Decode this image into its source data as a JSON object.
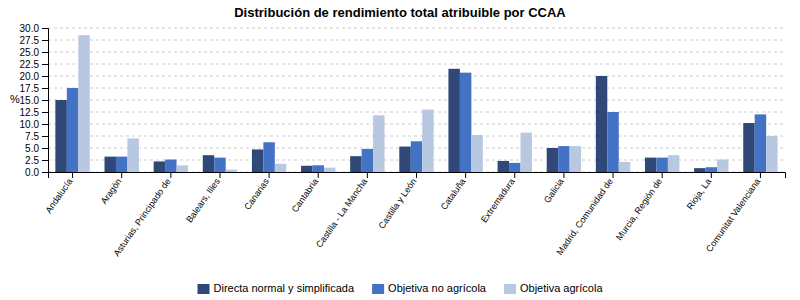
{
  "chart_data": {
    "type": "bar",
    "title": "Distribución de rendimiento total atribuible por CCAA",
    "ylabel": "%",
    "categories": [
      "Andalucía",
      "Aragón",
      "Asturias, Principado de",
      "Balears, Illes",
      "Canarias",
      "Cantabria",
      "Castilla - La Mancha",
      "Castilla y León",
      "Cataluña",
      "Extremadura",
      "Galicia",
      "Madrid, Comunidad de",
      "Murcia, Región de",
      "Rioja, La",
      "Comunitat Valenciana"
    ],
    "series": [
      {
        "name": "Directa normal y simplificada",
        "color": "#2F4878",
        "values": [
          15.0,
          3.2,
          2.2,
          3.5,
          4.7,
          1.3,
          3.3,
          5.3,
          21.5,
          2.3,
          5.0,
          20.0,
          3.0,
          0.8,
          10.2
        ]
      },
      {
        "name": "Objetiva no agrícola",
        "color": "#4472C4",
        "values": [
          17.5,
          3.2,
          2.6,
          3.0,
          6.2,
          1.4,
          4.8,
          6.4,
          20.7,
          1.9,
          5.4,
          12.5,
          3.0,
          1.0,
          12.0
        ]
      },
      {
        "name": "Objetiva agrícola",
        "color": "#B8C8E0",
        "values": [
          28.5,
          7.0,
          1.4,
          0.5,
          1.7,
          0.9,
          11.8,
          13.0,
          7.7,
          8.2,
          5.4,
          2.1,
          3.5,
          2.6,
          7.5
        ]
      }
    ],
    "ylim": [
      0,
      30
    ],
    "yticks": [
      {
        "value": 0,
        "label": "0.0"
      },
      2.5,
      {
        "value": 5,
        "label": "5.0"
      },
      7.5,
      {
        "value": 10,
        "label": "10.0"
      },
      12.5,
      {
        "value": 15,
        "label": "15.0"
      },
      17.5,
      {
        "value": 20,
        "label": "20.0"
      },
      22.5,
      {
        "value": 25,
        "label": "25.0"
      },
      27.5,
      {
        "value": 30,
        "label": "30.0"
      }
    ],
    "grid": true,
    "legend": "bottom"
  }
}
